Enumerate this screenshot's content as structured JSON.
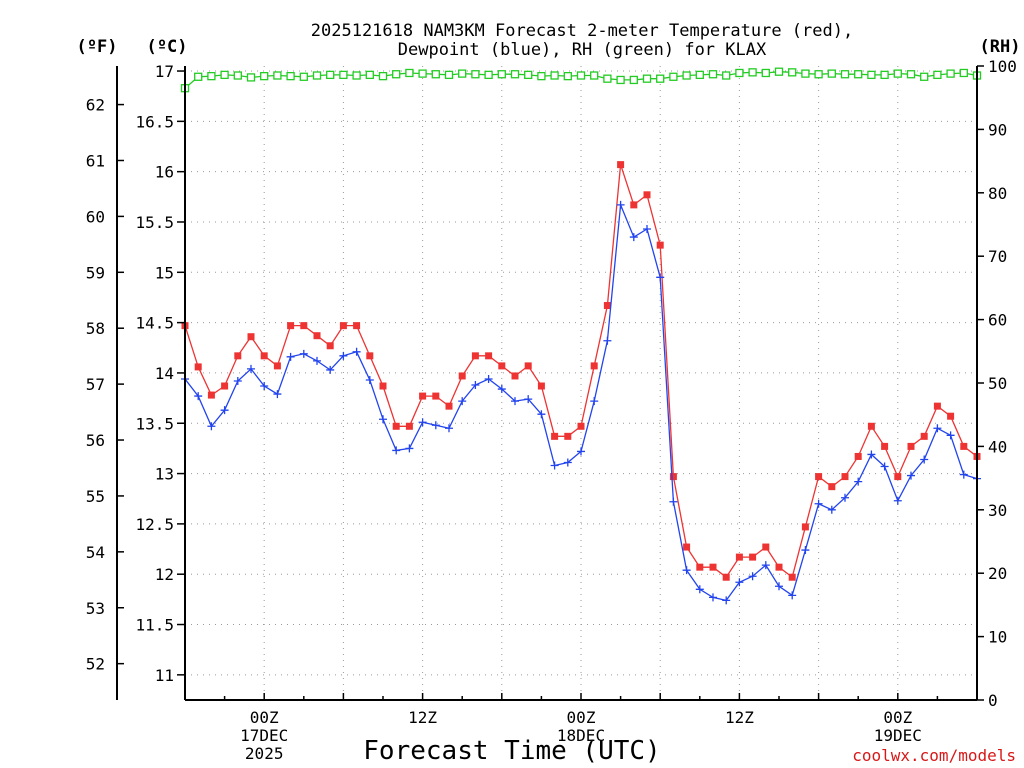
{
  "chart_data": {
    "type": "line",
    "title": [
      "2025121618 NAM3KM Forecast 2-meter Temperature (red),",
      "Dewpoint (blue), RH (green) for KLAX"
    ],
    "xlabel": "Forecast Time (UTC)",
    "credit": "coolwx.com/models",
    "units": {
      "fahrenheit": "(ºF)",
      "celsius": "(ºC)",
      "rh": "(RH)"
    },
    "x_start_hour": 18,
    "x_range_hours": [
      18,
      78
    ],
    "x_ticks": [
      {
        "hour": 24,
        "lines": [
          "00Z",
          "17DEC",
          "2025"
        ]
      },
      {
        "hour": 36,
        "lines": [
          "12Z"
        ]
      },
      {
        "hour": 48,
        "lines": [
          "00Z",
          "18DEC"
        ]
      },
      {
        "hour": 60,
        "lines": [
          "12Z"
        ]
      },
      {
        "hour": 72,
        "lines": [
          "00Z",
          "19DEC"
        ]
      }
    ],
    "ylim_c": [
      10.75,
      17.05
    ],
    "y_ticks_c": [
      11,
      11.5,
      12,
      12.5,
      13,
      13.5,
      14,
      14.5,
      15,
      15.5,
      16,
      16.5,
      17
    ],
    "y_ticks_f": [
      52,
      53,
      54,
      55,
      56,
      57,
      58,
      59,
      60,
      61,
      62
    ],
    "ylim_rh": [
      0,
      100
    ],
    "y_ticks_rh": [
      0,
      10,
      20,
      30,
      40,
      50,
      60,
      70,
      80,
      90,
      100
    ],
    "series": [
      {
        "name": "Temperature",
        "unit": "C",
        "color": "#ee3333",
        "marker": "square",
        "values": [
          14.47,
          14.06,
          13.78,
          13.87,
          14.17,
          14.36,
          14.17,
          14.07,
          14.47,
          14.47,
          14.37,
          14.27,
          14.47,
          14.47,
          14.17,
          13.87,
          13.47,
          13.47,
          13.77,
          13.77,
          13.67,
          13.97,
          14.17,
          14.17,
          14.07,
          13.97,
          14.07,
          13.87,
          13.37,
          13.37,
          13.47,
          14.07,
          14.67,
          16.07,
          15.67,
          15.77,
          15.27,
          12.97,
          12.27,
          12.07,
          12.07,
          11.97,
          12.17,
          12.17,
          12.27,
          12.07,
          11.97,
          12.47,
          12.97,
          12.87,
          12.97,
          13.17,
          13.47,
          13.27,
          12.97,
          13.27,
          13.37,
          13.67,
          13.57,
          13.27,
          13.17
        ]
      },
      {
        "name": "Dewpoint",
        "unit": "C",
        "color": "#2244ee",
        "marker": "plus",
        "values": [
          13.94,
          13.77,
          13.47,
          13.63,
          13.92,
          14.04,
          13.87,
          13.79,
          14.16,
          14.19,
          14.12,
          14.03,
          14.17,
          14.21,
          13.93,
          13.54,
          13.23,
          13.25,
          13.51,
          13.48,
          13.45,
          13.72,
          13.88,
          13.94,
          13.84,
          13.72,
          13.74,
          13.59,
          13.08,
          13.11,
          13.22,
          13.72,
          14.32,
          15.67,
          15.35,
          15.43,
          14.95,
          12.72,
          12.04,
          11.85,
          11.77,
          11.74,
          11.92,
          11.98,
          12.09,
          11.88,
          11.79,
          12.24,
          12.7,
          12.64,
          12.76,
          12.92,
          13.19,
          13.07,
          12.73,
          12.98,
          13.14,
          13.45,
          13.38,
          12.99,
          12.95
        ]
      },
      {
        "name": "RH",
        "unit": "%",
        "color": "#22cc22",
        "marker": "open-square",
        "values": [
          96.5,
          98.3,
          98.4,
          98.6,
          98.5,
          98.2,
          98.4,
          98.5,
          98.4,
          98.3,
          98.5,
          98.6,
          98.6,
          98.5,
          98.6,
          98.4,
          98.7,
          98.9,
          98.8,
          98.7,
          98.6,
          98.8,
          98.7,
          98.6,
          98.7,
          98.7,
          98.6,
          98.4,
          98.5,
          98.4,
          98.5,
          98.5,
          98.0,
          97.8,
          97.8,
          98.0,
          98.0,
          98.3,
          98.5,
          98.6,
          98.7,
          98.5,
          98.9,
          99.0,
          98.9,
          99.1,
          99.0,
          98.8,
          98.7,
          98.8,
          98.7,
          98.7,
          98.6,
          98.6,
          98.8,
          98.7,
          98.3,
          98.6,
          98.8,
          98.9,
          98.5
        ]
      }
    ]
  }
}
